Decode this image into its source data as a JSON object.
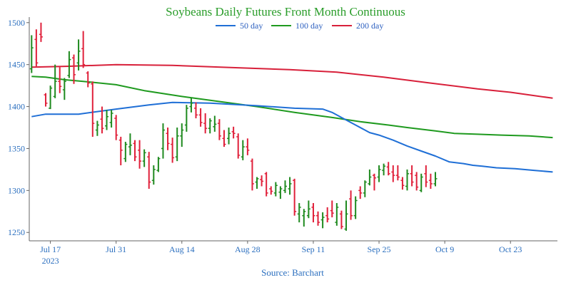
{
  "chart_data": {
    "type": "line",
    "title": "Soybeans Daily Futures Front Month Continuous",
    "source": "Source: Barchart",
    "ylim": [
      1240,
      1510
    ],
    "y_ticks": [
      1250,
      1300,
      1350,
      1400,
      1450,
      1500
    ],
    "x_ticks": [
      {
        "day": 4,
        "label": "Jul 17",
        "sublabel": "2023"
      },
      {
        "day": 18,
        "label": "Jul 31",
        "sublabel": ""
      },
      {
        "day": 32,
        "label": "Aug 14",
        "sublabel": ""
      },
      {
        "day": 46,
        "label": "Aug 28",
        "sublabel": ""
      },
      {
        "day": 60,
        "label": "Sep 11",
        "sublabel": ""
      },
      {
        "day": 74,
        "label": "Sep 25",
        "sublabel": ""
      },
      {
        "day": 88,
        "label": "Oct 9",
        "sublabel": ""
      },
      {
        "day": 102,
        "label": "Oct 23",
        "sublabel": ""
      }
    ],
    "x_range_days": [
      -0.5,
      112
    ],
    "colors": {
      "up": "#1f8a1f",
      "down": "#e0203a",
      "ma50": "#1f6fd6",
      "ma100": "#1f9a1f",
      "ma200": "#d8203a",
      "axis": "#666666"
    },
    "series": [
      {
        "name": "50 day",
        "color": "#1f6fd6",
        "points": [
          [
            0,
            1388
          ],
          [
            3,
            1391
          ],
          [
            10,
            1391
          ],
          [
            18,
            1397
          ],
          [
            25,
            1402
          ],
          [
            30,
            1405
          ],
          [
            38,
            1404
          ],
          [
            48,
            1401
          ],
          [
            56,
            1398
          ],
          [
            62,
            1397
          ],
          [
            64,
            1393
          ],
          [
            66,
            1387
          ],
          [
            69,
            1378
          ],
          [
            72,
            1369
          ],
          [
            74,
            1366
          ],
          [
            77,
            1360
          ],
          [
            80,
            1353
          ],
          [
            83,
            1347
          ],
          [
            86,
            1341
          ],
          [
            89,
            1334
          ],
          [
            92,
            1332
          ],
          [
            94,
            1330
          ],
          [
            96,
            1329
          ],
          [
            99,
            1327
          ],
          [
            103,
            1326
          ],
          [
            107,
            1324
          ],
          [
            111,
            1322
          ]
        ]
      },
      {
        "name": "100 day",
        "color": "#1f9a1f",
        "points": [
          [
            0,
            1436
          ],
          [
            3,
            1435
          ],
          [
            7,
            1432
          ],
          [
            11,
            1430
          ],
          [
            18,
            1426
          ],
          [
            24,
            1419
          ],
          [
            32,
            1412
          ],
          [
            40,
            1406
          ],
          [
            48,
            1400
          ],
          [
            56,
            1393
          ],
          [
            64,
            1387
          ],
          [
            70,
            1382
          ],
          [
            76,
            1378
          ],
          [
            80,
            1375
          ],
          [
            86,
            1371
          ],
          [
            90,
            1368
          ],
          [
            95,
            1367
          ],
          [
            100,
            1366
          ],
          [
            106,
            1365
          ],
          [
            111,
            1363
          ]
        ]
      },
      {
        "name": "200 day",
        "color": "#d8203a",
        "points": [
          [
            0,
            1447
          ],
          [
            8,
            1448
          ],
          [
            18,
            1450
          ],
          [
            30,
            1449
          ],
          [
            45,
            1446
          ],
          [
            55,
            1444
          ],
          [
            65,
            1441
          ],
          [
            75,
            1435
          ],
          [
            85,
            1428
          ],
          [
            95,
            1421
          ],
          [
            102,
            1417
          ],
          [
            111,
            1410
          ]
        ]
      }
    ],
    "bars": [
      [
        0,
        1445,
        1485,
        1440,
        1470
      ],
      [
        1,
        1480,
        1492,
        1448,
        1452
      ],
      [
        2,
        1486,
        1500,
        1477,
        1483
      ],
      [
        3,
        1414,
        1416,
        1400,
        1404
      ],
      [
        4,
        1398,
        1425,
        1397,
        1422
      ],
      [
        5,
        1412,
        1450,
        1410,
        1430
      ],
      [
        6,
        1430,
        1447,
        1416,
        1424
      ],
      [
        7,
        1420,
        1434,
        1408,
        1430
      ],
      [
        8,
        1437,
        1466,
        1434,
        1456
      ],
      [
        9,
        1458,
        1462,
        1427,
        1438
      ],
      [
        10,
        1452,
        1480,
        1443,
        1466
      ],
      [
        11,
        1469,
        1490,
        1446,
        1450
      ],
      [
        12,
        1440,
        1442,
        1423,
        1428
      ],
      [
        13,
        1427,
        1430,
        1364,
        1380
      ],
      [
        14,
        1372,
        1383,
        1365,
        1378
      ],
      [
        15,
        1385,
        1400,
        1368,
        1374
      ],
      [
        16,
        1377,
        1396,
        1372,
        1388
      ],
      [
        17,
        1381,
        1396,
        1375,
        1392
      ],
      [
        18,
        1386,
        1390,
        1360,
        1366
      ],
      [
        19,
        1360,
        1364,
        1330,
        1348
      ],
      [
        20,
        1338,
        1358,
        1334,
        1355
      ],
      [
        21,
        1352,
        1368,
        1342,
        1354
      ],
      [
        22,
        1356,
        1360,
        1335,
        1340
      ],
      [
        23,
        1348,
        1360,
        1326,
        1335
      ],
      [
        24,
        1335,
        1349,
        1328,
        1345
      ],
      [
        25,
        1340,
        1346,
        1302,
        1310
      ],
      [
        26,
        1312,
        1330,
        1307,
        1325
      ],
      [
        27,
        1324,
        1340,
        1322,
        1338
      ],
      [
        28,
        1350,
        1380,
        1338,
        1372
      ],
      [
        29,
        1368,
        1375,
        1348,
        1356
      ],
      [
        30,
        1355,
        1363,
        1333,
        1339
      ],
      [
        31,
        1340,
        1375,
        1335,
        1365
      ],
      [
        32,
        1365,
        1380,
        1352,
        1372
      ],
      [
        33,
        1378,
        1402,
        1370,
        1398
      ],
      [
        34,
        1400,
        1410,
        1393,
        1404
      ],
      [
        35,
        1398,
        1405,
        1386,
        1390
      ],
      [
        36,
        1390,
        1398,
        1376,
        1381
      ],
      [
        37,
        1380,
        1392,
        1368,
        1374
      ],
      [
        38,
        1374,
        1386,
        1368,
        1383
      ],
      [
        39,
        1376,
        1389,
        1370,
        1379
      ],
      [
        40,
        1380,
        1385,
        1360,
        1365
      ],
      [
        41,
        1362,
        1372,
        1352,
        1355
      ],
      [
        42,
        1362,
        1375,
        1355,
        1368
      ],
      [
        43,
        1370,
        1376,
        1362,
        1368
      ],
      [
        44,
        1364,
        1368,
        1338,
        1342
      ],
      [
        45,
        1340,
        1360,
        1336,
        1352
      ],
      [
        46,
        1352,
        1362,
        1342,
        1348
      ],
      [
        47,
        1335,
        1338,
        1300,
        1308
      ],
      [
        48,
        1310,
        1316,
        1302,
        1314
      ],
      [
        49,
        1313,
        1318,
        1305,
        1311
      ],
      [
        50,
        1320,
        1322,
        1293,
        1297
      ],
      [
        51,
        1302,
        1305,
        1295,
        1299
      ],
      [
        52,
        1297,
        1310,
        1293,
        1306
      ],
      [
        53,
        1298,
        1305,
        1290,
        1302
      ],
      [
        54,
        1300,
        1312,
        1297,
        1305
      ],
      [
        55,
        1302,
        1316,
        1295,
        1308
      ],
      [
        56,
        1312,
        1314,
        1270,
        1275
      ],
      [
        57,
        1272,
        1285,
        1262,
        1280
      ],
      [
        58,
        1270,
        1278,
        1257,
        1275
      ],
      [
        59,
        1270,
        1288,
        1267,
        1278
      ],
      [
        60,
        1280,
        1285,
        1262,
        1270
      ],
      [
        61,
        1270,
        1275,
        1258,
        1262
      ],
      [
        62,
        1265,
        1274,
        1255,
        1268
      ],
      [
        63,
        1270,
        1280,
        1262,
        1266
      ],
      [
        64,
        1276,
        1288,
        1268,
        1273
      ],
      [
        65,
        1262,
        1285,
        1258,
        1280
      ],
      [
        66,
        1272,
        1276,
        1254,
        1257
      ],
      [
        67,
        1254,
        1288,
        1252,
        1272
      ],
      [
        68,
        1290,
        1300,
        1265,
        1270
      ],
      [
        69,
        1270,
        1293,
        1266,
        1288
      ],
      [
        70,
        1300,
        1305,
        1290,
        1297
      ],
      [
        71,
        1297,
        1312,
        1292,
        1310
      ],
      [
        72,
        1308,
        1325,
        1306,
        1316
      ],
      [
        73,
        1318,
        1320,
        1300,
        1315
      ],
      [
        74,
        1316,
        1330,
        1310,
        1325
      ],
      [
        75,
        1324,
        1332,
        1318,
        1329
      ],
      [
        76,
        1328,
        1334,
        1318,
        1320
      ],
      [
        77,
        1322,
        1330,
        1310,
        1318
      ],
      [
        78,
        1318,
        1330,
        1312,
        1316
      ],
      [
        79,
        1312,
        1316,
        1301,
        1306
      ],
      [
        80,
        1305,
        1325,
        1300,
        1320
      ],
      [
        81,
        1320,
        1330,
        1305,
        1310
      ],
      [
        82,
        1318,
        1322,
        1300,
        1304
      ],
      [
        83,
        1300,
        1320,
        1298,
        1316
      ],
      [
        84,
        1320,
        1330,
        1304,
        1310
      ],
      [
        85,
        1312,
        1320,
        1302,
        1308
      ],
      [
        86,
        1308,
        1322,
        1305,
        1314
      ]
    ]
  }
}
